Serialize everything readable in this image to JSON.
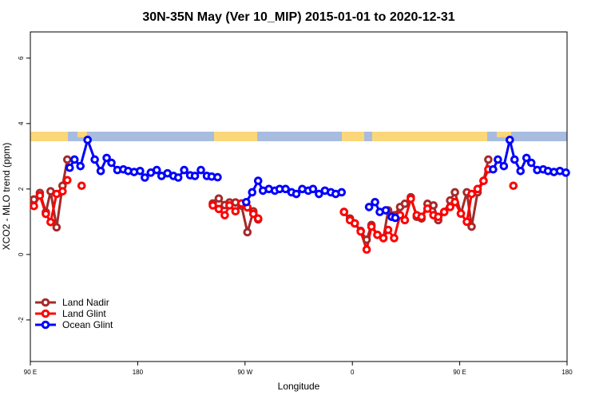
{
  "chart_data": {
    "type": "line",
    "title": "30N-35N May (Ver 10_MIP)   2015-01-01 to 2020-12-31",
    "x_label": "Longitude",
    "y_label": "XCO2 - MLO trend (ppm)",
    "xlim": [
      90,
      540
    ],
    "ylim": [
      -3.27,
      6.8
    ],
    "xticks": [
      {
        "value": 90,
        "label": "90 E"
      },
      180,
      {
        "value": 270,
        "label": "90 W"
      },
      {
        "value": 360,
        "label": "0"
      },
      {
        "value": 450,
        "label": "90 E"
      },
      {
        "value": 540,
        "label": "180"
      }
    ],
    "yticks": [
      -2,
      0,
      2,
      4,
      6
    ],
    "legend": "bottom-left",
    "series": [
      {
        "name": "Land Nadir",
        "color": "#a52a2a",
        "x": [
          93,
          98,
          103,
          107,
          112,
          117,
          121,
          null,
          243,
          248,
          253,
          257,
          262,
          267,
          272,
          277,
          281,
          null,
          353,
          358,
          362,
          367,
          372,
          376,
          381,
          386,
          390,
          395,
          400,
          404,
          409,
          414,
          418,
          423,
          428,
          432,
          437,
          442,
          446,
          451,
          456,
          460,
          465,
          470,
          474
        ],
        "values": [
          1.68,
          1.88,
          1.29,
          1.93,
          0.83,
          2.1,
          2.9,
          null,
          1.56,
          1.71,
          1.51,
          1.59,
          1.59,
          1.49,
          0.68,
          1.32,
          1.07,
          null,
          1.3,
          1.1,
          0.95,
          0.72,
          0.45,
          0.9,
          0.6,
          0.5,
          1.35,
          1.2,
          1.45,
          1.55,
          1.75,
          1.15,
          1.1,
          1.55,
          1.5,
          1.05,
          1.3,
          1.65,
          1.9,
          1.25,
          1.9,
          0.85,
          1.9,
          2.25,
          2.9
        ]
      },
      {
        "name": "Land Glint",
        "color": "#ff0000",
        "x": [
          93,
          98,
          103,
          107,
          112,
          117,
          121,
          null,
          133,
          null,
          243,
          248,
          253,
          257,
          262,
          267,
          272,
          277,
          281,
          null,
          353,
          358,
          362,
          367,
          372,
          376,
          381,
          386,
          390,
          395,
          400,
          404,
          409,
          414,
          418,
          423,
          428,
          432,
          437,
          442,
          446,
          451,
          456,
          460,
          465,
          470,
          474,
          null,
          495
        ],
        "values": [
          1.48,
          1.8,
          1.24,
          0.99,
          1.85,
          1.93,
          2.27,
          null,
          2.1,
          null,
          1.5,
          1.39,
          1.2,
          1.5,
          1.32,
          1.56,
          1.44,
          1.24,
          1.1,
          null,
          1.3,
          1.05,
          0.95,
          0.7,
          0.15,
          0.85,
          0.6,
          0.5,
          0.75,
          0.5,
          1.2,
          1.05,
          1.7,
          1.2,
          1.15,
          1.4,
          1.2,
          1.15,
          1.3,
          1.45,
          1.6,
          1.25,
          1.0,
          1.85,
          2.0,
          2.25,
          2.6,
          null,
          2.1
        ]
      },
      {
        "name": "Ocean Glint",
        "color": "#0000ff",
        "x": [
          123,
          127,
          132,
          138,
          144,
          149,
          154,
          158,
          163,
          168,
          172,
          177,
          182,
          186,
          191,
          196,
          200,
          205,
          210,
          214,
          219,
          224,
          228,
          233,
          238,
          242,
          247,
          null,
          271,
          276,
          281,
          285,
          290,
          295,
          299,
          304,
          309,
          313,
          318,
          323,
          327,
          332,
          337,
          342,
          346,
          351,
          null,
          374,
          379,
          383,
          388,
          393,
          396,
          null,
          478,
          482,
          487,
          492,
          496,
          501,
          506,
          510,
          515,
          520,
          524,
          529,
          534,
          539
        ],
        "values": [
          2.65,
          2.9,
          2.7,
          3.5,
          2.9,
          2.55,
          2.95,
          2.8,
          2.58,
          2.6,
          2.55,
          2.52,
          2.55,
          2.35,
          2.5,
          2.58,
          2.4,
          2.48,
          2.4,
          2.35,
          2.58,
          2.42,
          2.4,
          2.58,
          2.4,
          2.38,
          2.36,
          null,
          1.6,
          1.9,
          2.25,
          1.95,
          2.0,
          1.95,
          2.0,
          2.0,
          1.9,
          1.85,
          2.0,
          1.95,
          2.0,
          1.85,
          1.95,
          1.9,
          1.85,
          1.9,
          null,
          1.45,
          1.6,
          1.3,
          1.35,
          1.15,
          1.12,
          null,
          2.6,
          2.9,
          2.7,
          3.5,
          2.9,
          2.55,
          2.95,
          2.8,
          2.58,
          2.6,
          2.55,
          2.52,
          2.55,
          2.5
        ]
      }
    ]
  }
}
